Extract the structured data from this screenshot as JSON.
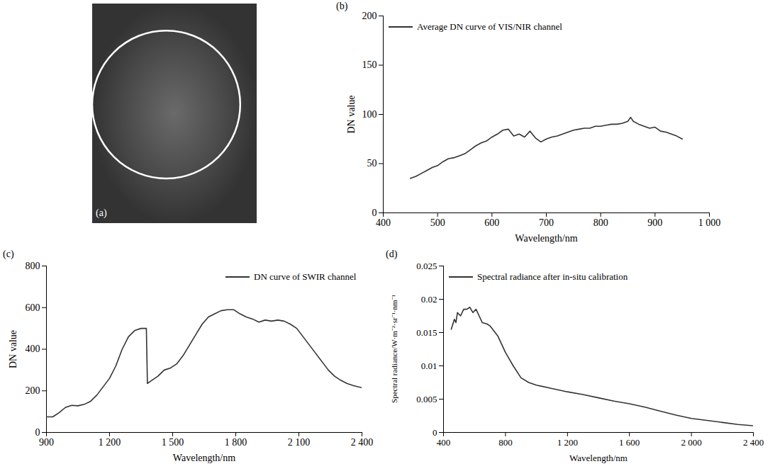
{
  "chart_data": [
    {
      "type": "image",
      "panel_label": "(a)"
    },
    {
      "type": "line",
      "panel_label": "(b)",
      "x_label": "Wavelength/nm",
      "y_label": "DN value",
      "xlim": [
        400,
        1000
      ],
      "xticks": [
        400,
        500,
        600,
        700,
        800,
        900,
        {
          "value": 1000,
          "label": "1 000"
        }
      ],
      "ylim": [
        0,
        200
      ],
      "yticks": [
        0,
        50,
        100,
        150,
        200
      ],
      "legend": "top-left",
      "x": [
        450,
        460,
        470,
        480,
        490,
        500,
        510,
        520,
        530,
        540,
        550,
        560,
        570,
        580,
        590,
        600,
        610,
        620,
        630,
        640,
        650,
        660,
        670,
        680,
        690,
        700,
        710,
        720,
        730,
        740,
        750,
        760,
        770,
        780,
        790,
        800,
        810,
        820,
        830,
        840,
        850,
        855,
        860,
        870,
        880,
        890,
        900,
        910,
        920,
        930,
        940,
        950
      ],
      "series": [
        {
          "name": "Average DN curve of VIS/NIR channel",
          "color": "#333333",
          "values": [
            35,
            37,
            40,
            43,
            46,
            48,
            52,
            55,
            56,
            58,
            60,
            64,
            68,
            71,
            73,
            77,
            80,
            84,
            85,
            78,
            80,
            77,
            83,
            76,
            72,
            75,
            77,
            78,
            80,
            82,
            84,
            85,
            86,
            86,
            88,
            88,
            89,
            90,
            90,
            91,
            93,
            97,
            93,
            90,
            88,
            86,
            87,
            83,
            82,
            80,
            78,
            75
          ]
        }
      ]
    },
    {
      "type": "line",
      "panel_label": "(c)",
      "x_label": "Wavelength/nm",
      "y_label": "DN value",
      "xlim": [
        900,
        2400
      ],
      "xticks": [
        900,
        {
          "value": 1200,
          "label": "1 200"
        },
        {
          "value": 1500,
          "label": "1 500"
        },
        {
          "value": 1800,
          "label": "1 800"
        },
        {
          "value": 2100,
          "label": "2 100"
        },
        {
          "value": 2400,
          "label": "2 400"
        }
      ],
      "ylim": [
        0,
        800
      ],
      "yticks": [
        0,
        200,
        400,
        600,
        800
      ],
      "legend": "top-right",
      "x": [
        900,
        930,
        960,
        990,
        1020,
        1050,
        1080,
        1110,
        1140,
        1170,
        1200,
        1230,
        1260,
        1290,
        1320,
        1350,
        1375,
        1380,
        1400,
        1430,
        1460,
        1490,
        1520,
        1550,
        1580,
        1610,
        1640,
        1670,
        1700,
        1730,
        1760,
        1790,
        1820,
        1850,
        1880,
        1910,
        1940,
        1970,
        2000,
        2030,
        2060,
        2090,
        2120,
        2150,
        2180,
        2210,
        2240,
        2270,
        2300,
        2330,
        2360,
        2400
      ],
      "series": [
        {
          "name": "DN curve of SWIR channel",
          "color": "#333333",
          "values": [
            75,
            75,
            95,
            120,
            130,
            128,
            135,
            150,
            180,
            220,
            260,
            320,
            400,
            460,
            490,
            500,
            500,
            235,
            250,
            270,
            300,
            310,
            330,
            370,
            420,
            470,
            520,
            555,
            570,
            585,
            590,
            590,
            570,
            555,
            545,
            530,
            540,
            535,
            540,
            535,
            520,
            500,
            460,
            420,
            380,
            340,
            300,
            270,
            250,
            235,
            225,
            215
          ]
        }
      ]
    },
    {
      "type": "line",
      "panel_label": "(d)",
      "x_label": "Wavelength/nm",
      "y_label": "Spectral radiance/W·m⁻²·sr⁻¹·nm⁻¹",
      "xlim": [
        400,
        2400
      ],
      "xticks": [
        400,
        800,
        {
          "value": 1200,
          "label": "1 200"
        },
        {
          "value": 1600,
          "label": "1 600"
        },
        {
          "value": 2000,
          "label": "2 000"
        },
        {
          "value": 2400,
          "label": "2 400"
        }
      ],
      "ylim": [
        0,
        0.025
      ],
      "yticks": [
        0,
        0.005,
        0.01,
        0.015,
        0.02,
        0.025
      ],
      "legend": "top-left",
      "x": [
        450,
        470,
        480,
        490,
        510,
        530,
        550,
        570,
        590,
        610,
        630,
        650,
        680,
        700,
        750,
        800,
        850,
        900,
        950,
        1000,
        1100,
        1200,
        1300,
        1400,
        1500,
        1600,
        1700,
        1800,
        1900,
        2000,
        2100,
        2200,
        2300,
        2400
      ],
      "series": [
        {
          "name": "Spectral radiance after in-situ calibration",
          "color": "#333333",
          "values": [
            0.0155,
            0.017,
            0.0165,
            0.018,
            0.0175,
            0.0185,
            0.0185,
            0.0188,
            0.018,
            0.0185,
            0.0175,
            0.0165,
            0.0163,
            0.016,
            0.0145,
            0.012,
            0.01,
            0.0082,
            0.0075,
            0.0071,
            0.0066,
            0.0061,
            0.0057,
            0.0052,
            0.0047,
            0.0043,
            0.0038,
            0.0032,
            0.0026,
            0.0021,
            0.0018,
            0.0015,
            0.0012,
            0.001
          ]
        }
      ]
    }
  ]
}
